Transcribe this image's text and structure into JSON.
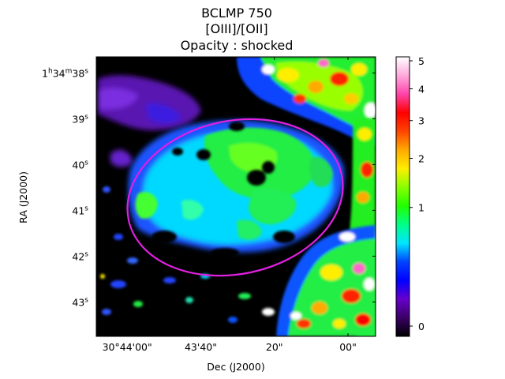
{
  "chart_data": {
    "type": "heatmap",
    "title_lines": [
      "BCLMP 750",
      "[OIII]/[OII]",
      "Opacity : shocked"
    ],
    "xlabel": "Dec (J2000)",
    "ylabel": "RA (J2000)",
    "x_ticks": [
      {
        "label": "30°44'00\"",
        "value": 0
      },
      {
        "label": "43'40\"",
        "value": 20
      },
      {
        "label": "20\"",
        "value": 40
      },
      {
        "label": "00\"",
        "value": 60
      }
    ],
    "y_ticks": [
      {
        "prefix": "1",
        "h": "h",
        "mid": "34",
        "m": "m",
        "num": "38",
        "s": "s",
        "value": 38
      },
      {
        "num": "39",
        "s": "s",
        "value": 39
      },
      {
        "num": "40",
        "s": "s",
        "value": 40
      },
      {
        "num": "41",
        "s": "s",
        "value": 41
      },
      {
        "num": "42",
        "s": "s",
        "value": 42
      },
      {
        "num": "43",
        "s": "s",
        "value": 43
      }
    ],
    "colorbar": {
      "ticks": [
        {
          "label": "5",
          "value": 5
        },
        {
          "label": "4",
          "value": 4
        },
        {
          "label": "3",
          "value": 3
        },
        {
          "label": "2",
          "value": 2
        },
        {
          "label": "1",
          "value": 1
        },
        {
          "label": "0",
          "value": 0
        }
      ],
      "colormap": "gist_ncar-like (black-purple-blue-cyan-green-yellow-red-pink-white)",
      "stops": [
        "#000000",
        "#3a0066",
        "#6600cc",
        "#0000ff",
        "#0044ff",
        "#00e5ff",
        "#00ff88",
        "#22ff00",
        "#88ff00",
        "#ffee00",
        "#ffaa00",
        "#ff4400",
        "#ff0000",
        "#ff44aa",
        "#ffaadd",
        "#ffffff"
      ]
    },
    "aperture": {
      "shape": "ellipse",
      "color": "#e020e0"
    }
  }
}
